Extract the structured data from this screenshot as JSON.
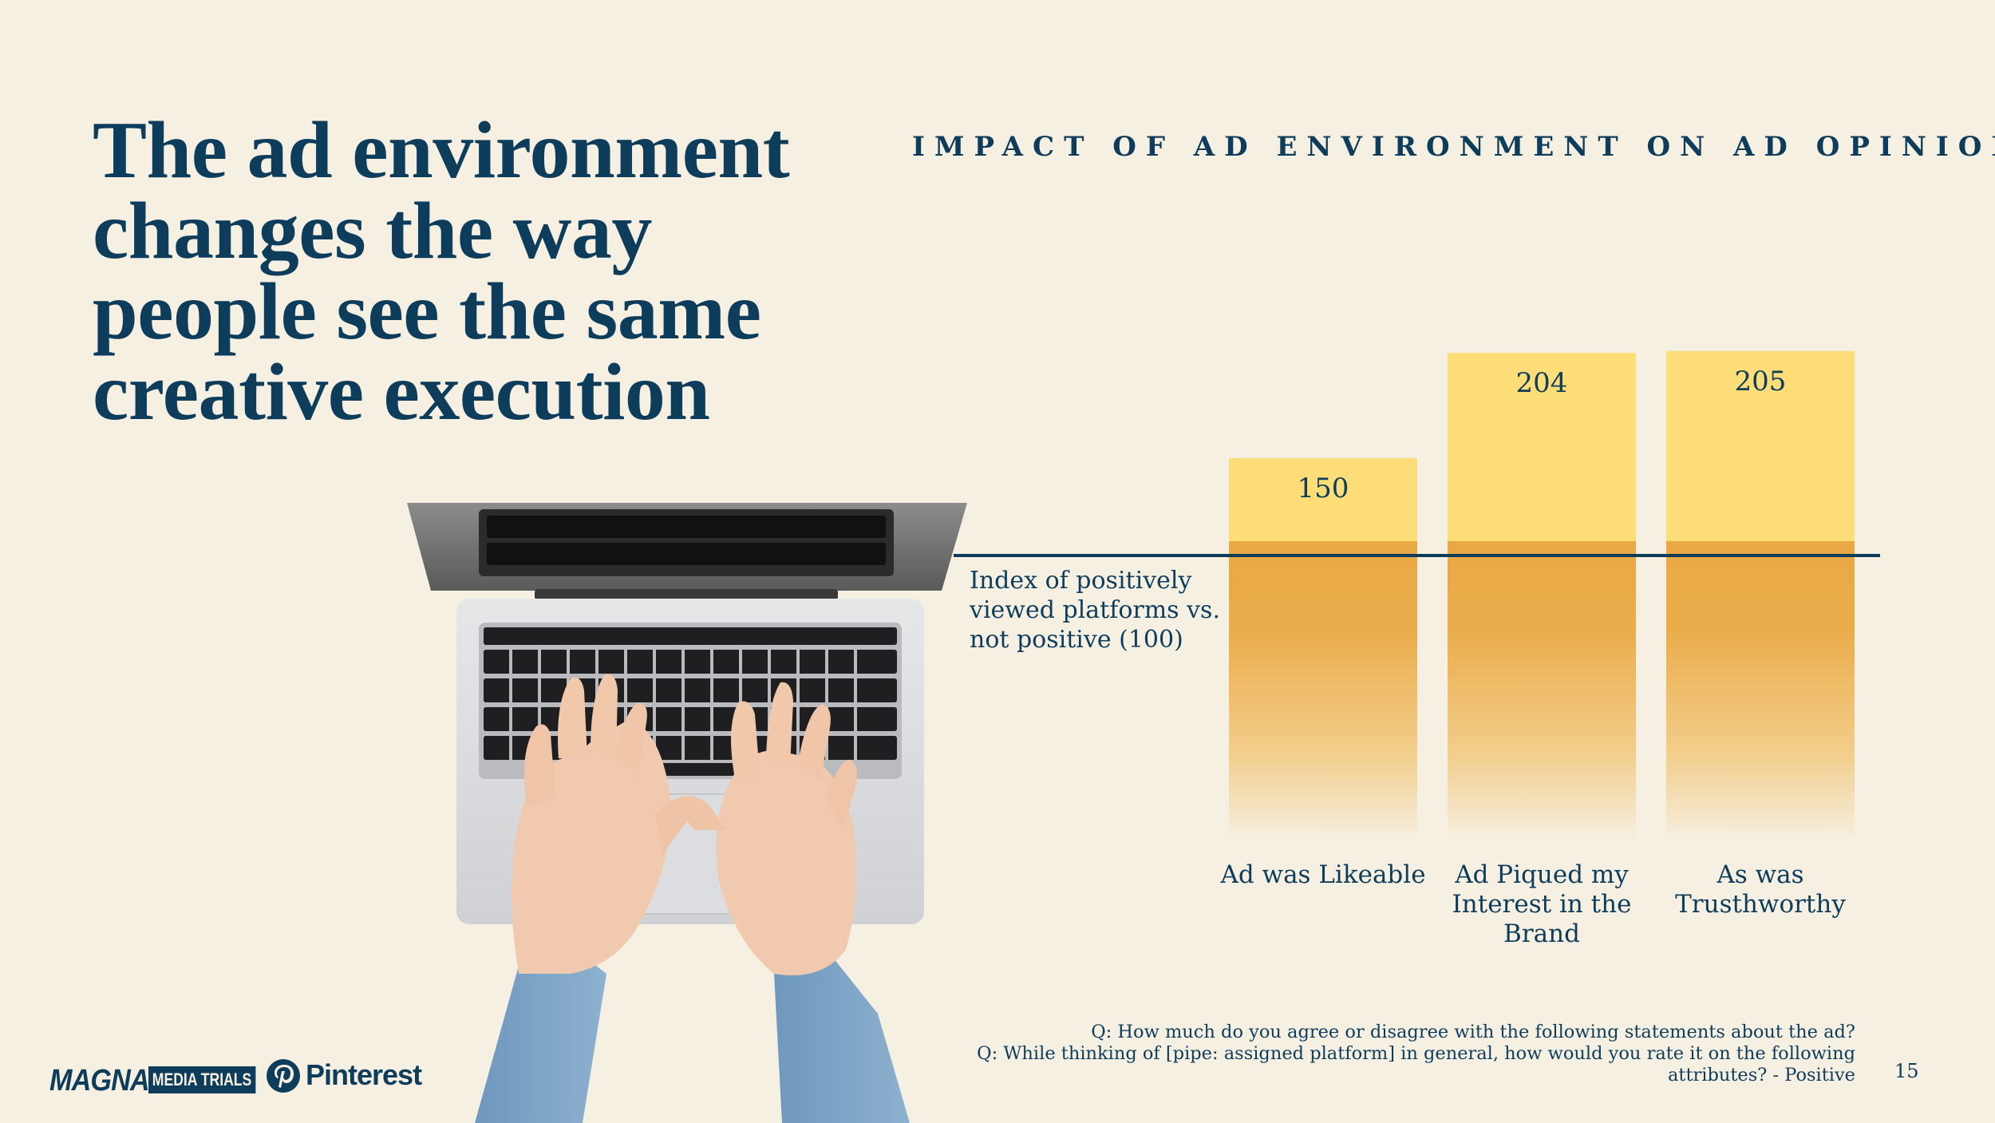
{
  "headline": "The ad environment changes the way people see the same creative execution",
  "chart_data": {
    "type": "bar",
    "title": "IMPACT OF AD ENVIRONMENT ON AD OPINIONS",
    "categories": [
      "Ad was Likeable",
      "Ad Piqued my Interest in the Brand",
      "As was Trusthworthy"
    ],
    "values": [
      150,
      204,
      205
    ],
    "baseline": 100,
    "baseline_label": "Index of positively viewed platforms vs. not positive (100)",
    "xlabel": "",
    "ylabel": "",
    "ylim": [
      0,
      210
    ],
    "colors": {
      "above_baseline": "#fddd78",
      "below_baseline_top": "#e9a844",
      "below_baseline_fade": "#f6f0e2",
      "baseline_line": "#0e3d5c"
    }
  },
  "footnote": {
    "line1": "Q: How much do you agree or disagree with the following statements about the ad?",
    "line2": "Q: While thinking of [pipe: assigned platform] in general, how would you rate it on the following",
    "line3": "attributes? - Positive"
  },
  "page_number": "15",
  "logos": {
    "magna": "MAGNA",
    "media_trials": "MEDIA TRIALS",
    "pinterest": "Pinterest"
  },
  "image": {
    "icon": "laptop-hands-icon"
  },
  "colors": {
    "background": "#f6f0e2",
    "text": "#0e3d5c"
  }
}
